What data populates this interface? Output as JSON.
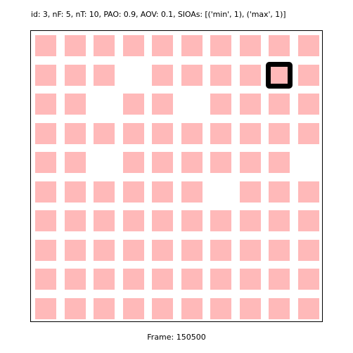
{
  "header": {
    "text": "id: 3, nF: 5, nT: 10, PAO: 0.9, AOV: 0.1, SIOAs: [('min', 1), ('max', 1)]"
  },
  "footer": {
    "text": "Frame: 150500"
  },
  "colors": {
    "tile": "#ffb9b9",
    "background": "#ffffff",
    "cursor": "#000000",
    "border": "#000000"
  },
  "grid": {
    "rows": 10,
    "cols": 10,
    "cells": [
      [
        1,
        1,
        1,
        1,
        1,
        1,
        1,
        1,
        1,
        1
      ],
      [
        1,
        1,
        1,
        0,
        1,
        1,
        1,
        1,
        1,
        1
      ],
      [
        1,
        1,
        0,
        1,
        1,
        0,
        1,
        1,
        1,
        1
      ],
      [
        1,
        1,
        1,
        1,
        1,
        1,
        1,
        1,
        1,
        1
      ],
      [
        1,
        1,
        0,
        1,
        1,
        1,
        1,
        1,
        1,
        0
      ],
      [
        1,
        1,
        1,
        1,
        1,
        1,
        0,
        1,
        1,
        1
      ],
      [
        1,
        1,
        1,
        1,
        1,
        1,
        1,
        1,
        1,
        1
      ],
      [
        1,
        1,
        1,
        1,
        1,
        1,
        1,
        1,
        1,
        1
      ],
      [
        1,
        1,
        1,
        1,
        1,
        1,
        1,
        1,
        1,
        1
      ],
      [
        1,
        1,
        1,
        1,
        1,
        1,
        1,
        1,
        1,
        1
      ]
    ],
    "cursor": {
      "row": 1,
      "col": 8
    }
  }
}
